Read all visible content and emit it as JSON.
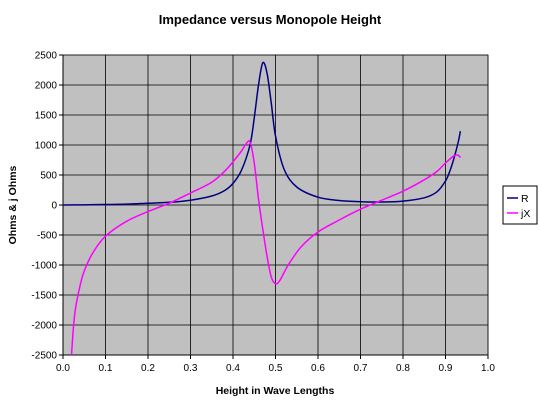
{
  "chart_data": {
    "type": "line",
    "title": "Impedance versus Monopole Height",
    "xlabel": "Height in Wave Lengths",
    "ylabel": "Ohms & j Ohms",
    "xlim": [
      0,
      1
    ],
    "ylim": [
      -2500,
      2500
    ],
    "xticks": [
      "0.0",
      "0.1",
      "0.2",
      "0.3",
      "0.4",
      "0.5",
      "0.6",
      "0.7",
      "0.8",
      "0.9",
      "1.0"
    ],
    "yticks": [
      "2500",
      "2000",
      "1500",
      "1000",
      "500",
      "0",
      "-500",
      "-1000",
      "-1500",
      "-2000",
      "-2500"
    ],
    "grid": true,
    "legend_position": "right",
    "plot_background": "#c0c0c0",
    "series": [
      {
        "name": "R",
        "color": "#000080",
        "x": [
          0.0,
          0.05,
          0.1,
          0.15,
          0.2,
          0.25,
          0.3,
          0.35,
          0.38,
          0.4,
          0.42,
          0.44,
          0.45,
          0.46,
          0.47,
          0.48,
          0.49,
          0.5,
          0.52,
          0.55,
          0.6,
          0.65,
          0.7,
          0.75,
          0.8,
          0.85,
          0.88,
          0.9,
          0.91,
          0.92,
          0.93,
          0.935
        ],
        "y": [
          0,
          3,
          8,
          15,
          30,
          45,
          80,
          150,
          240,
          360,
          580,
          1000,
          1450,
          2000,
          2370,
          2200,
          1700,
          1150,
          600,
          300,
          130,
          75,
          55,
          50,
          65,
          120,
          220,
          400,
          560,
          780,
          1050,
          1230
        ]
      },
      {
        "name": "jX",
        "color": "#ff00ff",
        "x": [
          0.02,
          0.025,
          0.03,
          0.04,
          0.05,
          0.07,
          0.1,
          0.15,
          0.2,
          0.25,
          0.3,
          0.35,
          0.38,
          0.4,
          0.42,
          0.43,
          0.44,
          0.45,
          0.46,
          0.47,
          0.48,
          0.49,
          0.5,
          0.51,
          0.53,
          0.56,
          0.6,
          0.65,
          0.7,
          0.75,
          0.8,
          0.85,
          0.88,
          0.9,
          0.92,
          0.93,
          0.935
        ],
        "y": [
          -2500,
          -2000,
          -1700,
          -1350,
          -1100,
          -800,
          -520,
          -270,
          -110,
          30,
          200,
          380,
          560,
          720,
          900,
          1010,
          1050,
          700,
          100,
          -400,
          -850,
          -1200,
          -1310,
          -1260,
          -1000,
          -700,
          -450,
          -250,
          -70,
          80,
          230,
          420,
          560,
          700,
          820,
          830,
          790
        ]
      }
    ]
  }
}
